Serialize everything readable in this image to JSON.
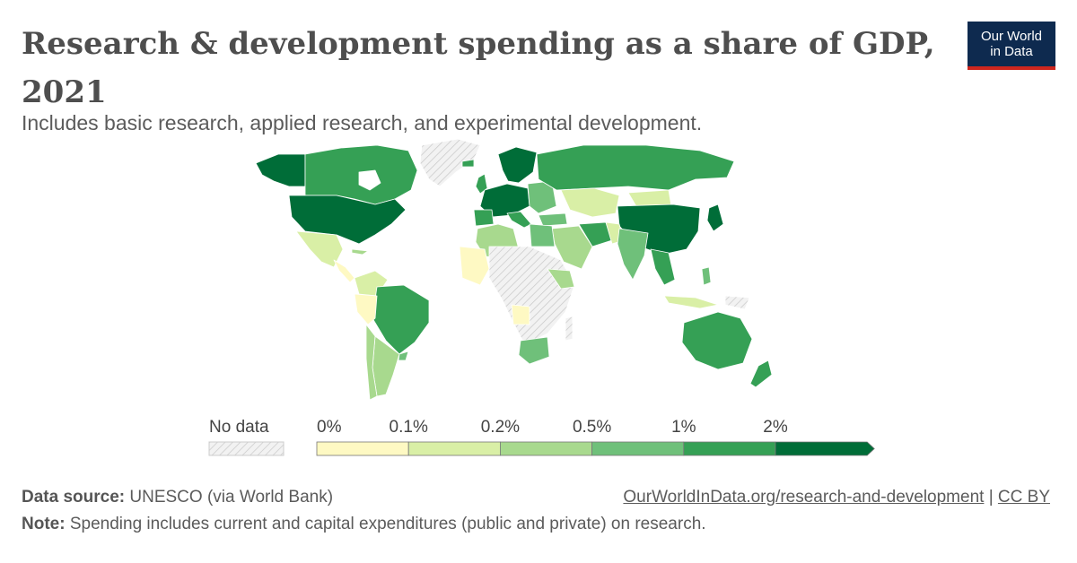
{
  "header": {
    "title": "Research & development spending as a share of GDP, 2021",
    "subtitle": "Includes basic research, applied research, and experimental development.",
    "logo_line1": "Our World",
    "logo_line2": "in Data"
  },
  "legend": {
    "no_data_label": "No data",
    "bins": [
      {
        "label": "0%",
        "color": "#fef9c3"
      },
      {
        "label": "0.1%",
        "color": "#d9efa6"
      },
      {
        "label": "0.2%",
        "color": "#a8d98e"
      },
      {
        "label": "0.5%",
        "color": "#6fc07a"
      },
      {
        "label": "1%",
        "color": "#35a055"
      },
      {
        "label": "2%",
        "color": "#006d38"
      }
    ]
  },
  "colors": {
    "no_data": "#e8e8e8",
    "border": "#ffffff",
    "title": "#4e4e4e",
    "logo_bg": "#0e2a4f",
    "logo_accent": "#ce261e"
  },
  "footer": {
    "source_label": "Data source:",
    "source_text": " UNESCO (via World Bank)",
    "note_label": "Note:",
    "note_text": " Spending includes current and capital expenditures (public and private) on research.",
    "url": "OurWorldInData.org/research-and-development",
    "separator": " | ",
    "license": "CC BY"
  }
}
